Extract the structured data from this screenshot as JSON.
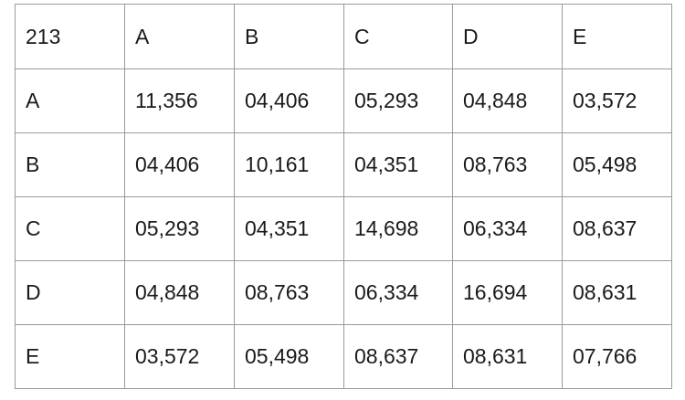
{
  "table": {
    "corner": "213",
    "column_headers": [
      "A",
      "B",
      "C",
      "D",
      "E"
    ],
    "rows": [
      {
        "label": "A",
        "cells": [
          "11,356",
          "04,406",
          "05,293",
          "04,848",
          "03,572"
        ]
      },
      {
        "label": "B",
        "cells": [
          "04,406",
          "10,161",
          "04,351",
          "08,763",
          "05,498"
        ]
      },
      {
        "label": "C",
        "cells": [
          "05,293",
          "04,351",
          "14,698",
          "06,334",
          "08,637"
        ]
      },
      {
        "label": "D",
        "cells": [
          "04,848",
          "08,763",
          "06,334",
          "16,694",
          "08,631"
        ]
      },
      {
        "label": "E",
        "cells": [
          "03,572",
          "05,498",
          "08,637",
          "08,631",
          "07,766"
        ]
      }
    ]
  }
}
